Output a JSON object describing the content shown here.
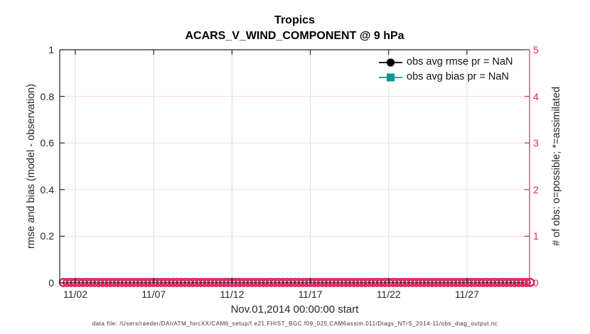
{
  "figure": {
    "title": "Tropics",
    "subtitle": "ACARS_V_WIND_COMPONENT @ 9 hPa",
    "xlabel": "Nov.01,2014 00:00:00 start",
    "ylabel_left": "rmse and bias (model - observation)",
    "ylabel_right": "# of obs: o=possible; *=assimilated",
    "footer": "data file: /Users/raeder/DAI/ATM_forcXX/CAM6_setup/f.e21.FHIST_BGC.f09_025.CAM6assim.011/Diags_NTrS_2014-11/obs_diag_output.nc"
  },
  "chart_data": {
    "type": "line",
    "title": "Tropics",
    "subtitle": "ACARS_V_WIND_COMPONENT @ 9 hPa",
    "xlabel": "Nov.01,2014 00:00:00 start",
    "ylabel_left": "rmse and bias (model - observation)",
    "ylabel_right": "# of obs: o=possible; *=assimilated",
    "x_axis": {
      "start": "2014-11-01 00:00:00",
      "span_days": 30,
      "tick_labels": [
        "11/02",
        "11/07",
        "11/12",
        "11/17",
        "11/22",
        "11/27"
      ],
      "tick_day_offsets": [
        1,
        6,
        11,
        16,
        21,
        26
      ]
    },
    "y_left": {
      "range": [
        0,
        1
      ],
      "ticks": [
        0,
        0.2,
        0.4,
        0.6,
        0.8,
        1
      ],
      "tick_labels": [
        "0",
        "0.2",
        "0.4",
        "0.6",
        "0.8",
        "1"
      ],
      "color": "#262626"
    },
    "y_right": {
      "range": [
        0,
        5
      ],
      "ticks": [
        0,
        1,
        2,
        3,
        4,
        5
      ],
      "tick_labels": [
        "0",
        "1",
        "2",
        "3",
        "4",
        "5"
      ],
      "color": "#E0245E"
    },
    "series": [
      {
        "name": "obs avg rmse pr = NaN",
        "value": "NaN",
        "color": "#000000",
        "marker": "circle"
      },
      {
        "name": "obs avg bias pr = NaN",
        "value": "NaN",
        "color": "#119490",
        "marker": "square"
      }
    ],
    "obs_markers": {
      "symbol": "o",
      "meaning": "possible observations",
      "y_value": 0,
      "count": 120,
      "color": "#E0245E"
    },
    "grid": {
      "on": true,
      "x_color": "#DCDCDC",
      "y_color": "#F7DCE7"
    },
    "legend": {
      "position": "top-right-inside",
      "box": false
    },
    "frame_color": "#262626"
  }
}
